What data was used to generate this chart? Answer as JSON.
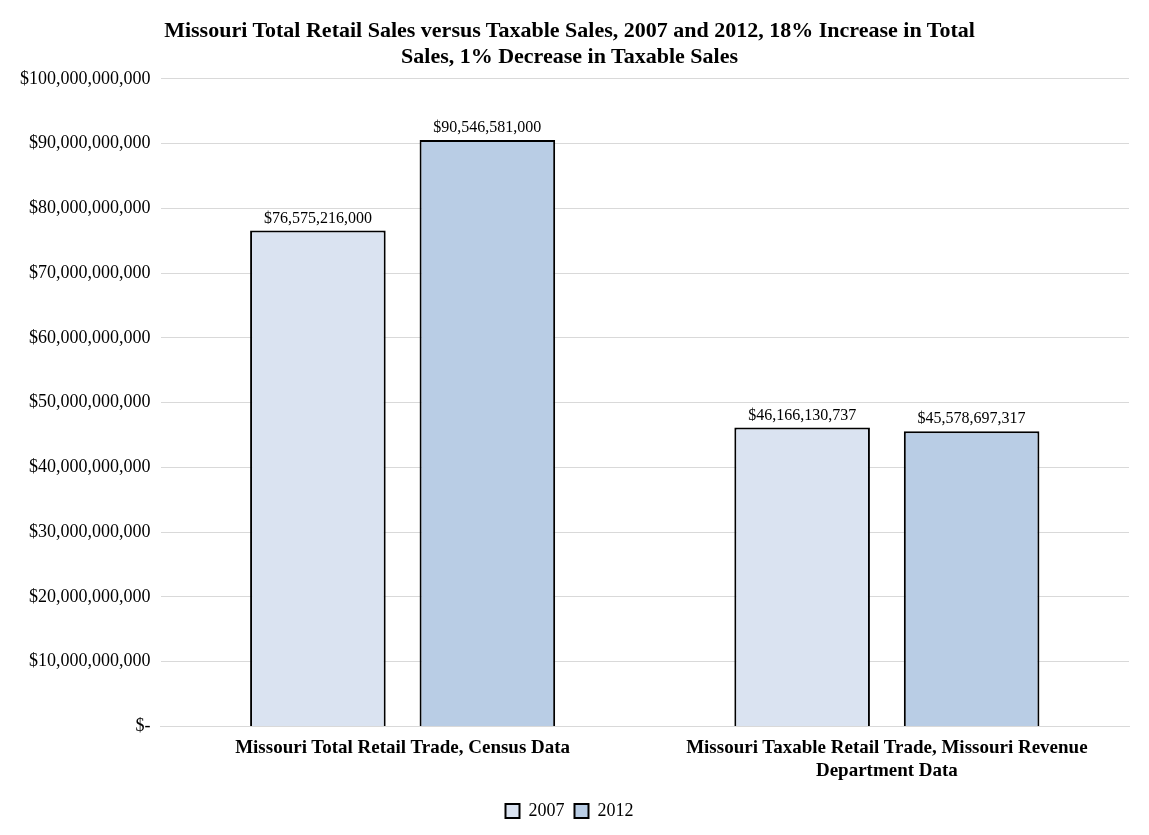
{
  "chart_data": {
    "type": "bar",
    "title": "Missouri Total Retail Sales versus Taxable Sales, 2007 and 2012, 18% Increase in Total Sales, 1% Decrease in Taxable Sales",
    "categories": [
      "Missouri Total Retail Trade, Census Data",
      "Missouri Taxable Retail Trade, Missouri Revenue Department Data"
    ],
    "series": [
      {
        "name": "2007",
        "color": "#dae3f1",
        "values": [
          76575216000,
          46166130737
        ],
        "value_labels": [
          "$76,575,216,000",
          "$46,166,130,737"
        ]
      },
      {
        "name": "2012",
        "color": "#b9cde5",
        "values": [
          90546581000,
          45578697317
        ],
        "value_labels": [
          "$90,546,581,000",
          "$45,578,697,317"
        ]
      }
    ],
    "ylim": [
      0,
      100000000000
    ],
    "yticks": [
      {
        "value": 0,
        "label": "$-"
      },
      {
        "value": 10000000000,
        "label": "$10,000,000,000"
      },
      {
        "value": 20000000000,
        "label": "$20,000,000,000"
      },
      {
        "value": 30000000000,
        "label": "$30,000,000,000"
      },
      {
        "value": 40000000000,
        "label": "$40,000,000,000"
      },
      {
        "value": 50000000000,
        "label": "$50,000,000,000"
      },
      {
        "value": 60000000000,
        "label": "$60,000,000,000"
      },
      {
        "value": 70000000000,
        "label": "$70,000,000,000"
      },
      {
        "value": 80000000000,
        "label": "$80,000,000,000"
      },
      {
        "value": 90000000000,
        "label": "$90,000,000,000"
      },
      {
        "value": 100000000000,
        "label": "$100,000,000,000"
      }
    ],
    "grid": "y",
    "legend": "bottom"
  }
}
